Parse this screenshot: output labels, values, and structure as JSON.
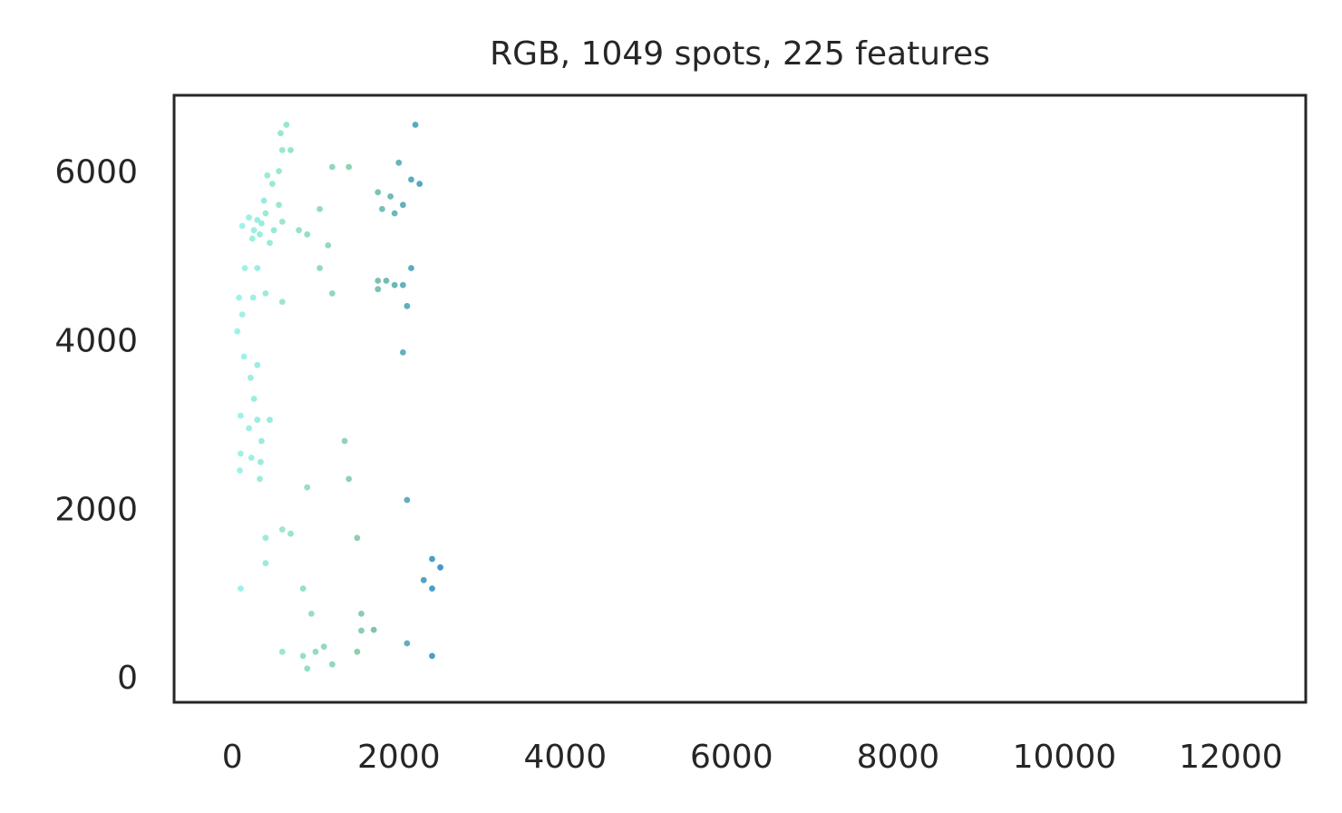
{
  "chart_data": {
    "type": "scatter",
    "title": "RGB, 1049 spots, 225 features",
    "xlabel": "",
    "ylabel": "",
    "xlim": [
      -700,
      12900
    ],
    "ylim": [
      -300,
      6900
    ],
    "x_ticks": [
      0,
      2000,
      4000,
      6000,
      8000,
      10000,
      12000
    ],
    "y_ticks": [
      0,
      2000,
      4000,
      6000
    ],
    "x_tick_labels": [
      "0",
      "2000",
      "4000",
      "6000",
      "8000",
      "10000",
      "12000"
    ],
    "y_tick_labels": [
      "0",
      "2000",
      "4000",
      "6000"
    ],
    "grid": false,
    "legend": "none",
    "n_points": 1049,
    "color_gradient_x": [
      {
        "x": 0,
        "color": "#9ff5ec"
      },
      {
        "x": 1500,
        "color": "#8fcfae"
      },
      {
        "x": 3000,
        "color": "#1a7fd6"
      },
      {
        "x": 4500,
        "color": "#3e3c8c"
      },
      {
        "x": 6000,
        "color": "#6a0fa0"
      },
      {
        "x": 7200,
        "color": "#8a2a3a"
      },
      {
        "x": 8800,
        "color": "#d0404a"
      },
      {
        "x": 10000,
        "color": "#e8641c"
      },
      {
        "x": 11000,
        "color": "#e6a020"
      },
      {
        "x": 12200,
        "color": "#a8d060"
      }
    ],
    "points": [
      [
        120,
        5350
      ],
      [
        200,
        5450
      ],
      [
        260,
        5300
      ],
      [
        300,
        5420
      ],
      [
        350,
        5380
      ],
      [
        400,
        5500
      ],
      [
        450,
        5150
      ],
      [
        500,
        5300
      ],
      [
        560,
        5600
      ],
      [
        600,
        5400
      ],
      [
        380,
        5650
      ],
      [
        330,
        5250
      ],
      [
        240,
        5200
      ],
      [
        480,
        5850
      ],
      [
        560,
        6000
      ],
      [
        600,
        6250
      ],
      [
        650,
        6550
      ],
      [
        580,
        6450
      ],
      [
        700,
        6250
      ],
      [
        420,
        5950
      ],
      [
        800,
        5300
      ],
      [
        900,
        5250
      ],
      [
        1050,
        5550
      ],
      [
        300,
        4850
      ],
      [
        150,
        4850
      ],
      [
        80,
        4500
      ],
      [
        250,
        4500
      ],
      [
        400,
        4550
      ],
      [
        600,
        4450
      ],
      [
        120,
        4300
      ],
      [
        60,
        4100
      ],
      [
        300,
        3700
      ],
      [
        140,
        3800
      ],
      [
        220,
        3550
      ],
      [
        260,
        3300
      ],
      [
        100,
        3100
      ],
      [
        300,
        3050
      ],
      [
        450,
        3050
      ],
      [
        200,
        2950
      ],
      [
        350,
        2800
      ],
      [
        100,
        2650
      ],
      [
        230,
        2600
      ],
      [
        340,
        2550
      ],
      [
        90,
        2450
      ],
      [
        330,
        2350
      ],
      [
        1200,
        6050
      ],
      [
        1400,
        6050
      ],
      [
        1150,
        5120
      ],
      [
        1050,
        4850
      ],
      [
        1200,
        4550
      ],
      [
        1350,
        2800
      ],
      [
        1400,
        2350
      ],
      [
        900,
        2250
      ],
      [
        1500,
        1650
      ],
      [
        400,
        1650
      ],
      [
        600,
        1750
      ],
      [
        700,
        1700
      ],
      [
        400,
        1350
      ],
      [
        100,
        1050
      ],
      [
        850,
        1050
      ],
      [
        950,
        750
      ],
      [
        1550,
        750
      ],
      [
        1550,
        550
      ],
      [
        1700,
        560
      ],
      [
        600,
        300
      ],
      [
        850,
        250
      ],
      [
        1000,
        300
      ],
      [
        1100,
        360
      ],
      [
        1200,
        150
      ],
      [
        1500,
        300
      ],
      [
        900,
        100
      ],
      [
        1750,
        5750
      ],
      [
        1900,
        5700
      ],
      [
        1800,
        5550
      ],
      [
        1950,
        5500
      ],
      [
        2050,
        5600
      ],
      [
        2150,
        5900
      ],
      [
        2250,
        5850
      ],
      [
        2000,
        6100
      ],
      [
        1750,
        4700
      ],
      [
        1850,
        4700
      ],
      [
        1950,
        4650
      ],
      [
        2050,
        4650
      ],
      [
        1750,
        4600
      ],
      [
        2150,
        4850
      ],
      [
        2200,
        6550
      ],
      [
        2100,
        4400
      ],
      [
        2050,
        3850
      ],
      [
        2100,
        2100
      ],
      [
        2100,
        400
      ],
      [
        2400,
        250
      ],
      [
        2500,
        1300
      ],
      [
        2400,
        1400
      ],
      [
        2300,
        1150
      ],
      [
        2400,
        1050
      ]
    ]
  }
}
